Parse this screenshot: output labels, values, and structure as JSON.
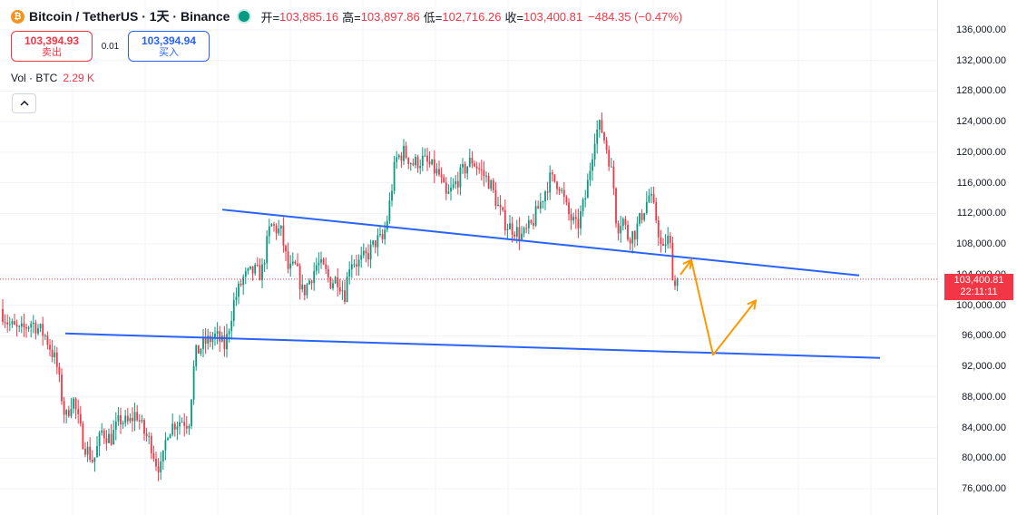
{
  "symbol": {
    "name": "Bitcoin / TetherUS · 1天 · Binance",
    "icon": "bitcoin-icon",
    "icon_glyph": "₿"
  },
  "ohlc": {
    "open_label": "开=",
    "open": "103,885.16",
    "high_label": "高=",
    "high": "103,897.86",
    "low_label": "低=",
    "low": "102,716.26",
    "close_label": "收=",
    "close": "103,400.81",
    "change": "−484.35 (−0.47%)"
  },
  "trade": {
    "sell_price": "103,394.93",
    "sell_label": "卖出",
    "spread": "0.01",
    "buy_price": "103,394.94",
    "buy_label": "买入"
  },
  "volume": {
    "label": "Vol · BTC",
    "value": "2.29 K"
  },
  "collapse_icon": "chevron-up-icon",
  "price_axis": {
    "ticks": [
      "136,000.00",
      "132,000.00",
      "128,000.00",
      "124,000.00",
      "120,000.00",
      "116,000.00",
      "112,000.00",
      "108,000.00",
      "104,000.00",
      "100,000.00",
      "96,000.00",
      "92,000.00",
      "88,000.00",
      "84,000.00",
      "80,000.00",
      "76,000.00"
    ],
    "last_price": "103,400.81",
    "countdown": "22:11:11"
  },
  "colors": {
    "up": "#089981",
    "down": "#f23645",
    "trendline": "#2962ff",
    "projection": "#ff9800",
    "last_price_line": "#f23645"
  },
  "chart_data": {
    "type": "candlestick",
    "title": "Bitcoin / TetherUS · 1天 · Binance",
    "ylim": [
      74000,
      138000
    ],
    "y_ticks": [
      136000,
      132000,
      128000,
      124000,
      120000,
      116000,
      112000,
      108000,
      104000,
      100000,
      96000,
      92000,
      88000,
      84000,
      80000,
      76000
    ],
    "price_path": [
      [
        0,
        99500
      ],
      [
        10,
        97500
      ],
      [
        22,
        96500
      ],
      [
        35,
        97800
      ],
      [
        50,
        96000
      ],
      [
        62,
        92500
      ],
      [
        72,
        85000
      ],
      [
        80,
        88000
      ],
      [
        92,
        82000
      ],
      [
        103,
        79500
      ],
      [
        112,
        83500
      ],
      [
        122,
        82500
      ],
      [
        132,
        85000
      ],
      [
        142,
        84500
      ],
      [
        150,
        86000
      ],
      [
        158,
        83500
      ],
      [
        166,
        82000
      ],
      [
        172,
        79500
      ],
      [
        178,
        78500
      ],
      [
        184,
        83500
      ],
      [
        192,
        84500
      ],
      [
        200,
        85000
      ],
      [
        208,
        84500
      ],
      [
        215,
        93500
      ],
      [
        225,
        95000
      ],
      [
        238,
        96000
      ],
      [
        248,
        94500
      ],
      [
        258,
        100500
      ],
      [
        268,
        103500
      ],
      [
        280,
        104500
      ],
      [
        288,
        104000
      ],
      [
        298,
        110500
      ],
      [
        310,
        109500
      ],
      [
        318,
        104500
      ],
      [
        326,
        105000
      ],
      [
        334,
        101500
      ],
      [
        342,
        103500
      ],
      [
        350,
        105500
      ],
      [
        358,
        104500
      ],
      [
        364,
        103000
      ],
      [
        372,
        103500
      ],
      [
        380,
        101500
      ],
      [
        386,
        106000
      ],
      [
        395,
        105500
      ],
      [
        405,
        106500
      ],
      [
        415,
        108500
      ],
      [
        422,
        108500
      ],
      [
        428,
        112000
      ],
      [
        436,
        119000
      ],
      [
        445,
        120000
      ],
      [
        455,
        118500
      ],
      [
        466,
        119000
      ],
      [
        476,
        118000
      ],
      [
        484,
        117000
      ],
      [
        492,
        114000
      ],
      [
        500,
        115500
      ],
      [
        510,
        117500
      ],
      [
        520,
        119000
      ],
      [
        530,
        117500
      ],
      [
        540,
        116000
      ],
      [
        550,
        112500
      ],
      [
        558,
        110500
      ],
      [
        566,
        110000
      ],
      [
        576,
        109000
      ],
      [
        586,
        110500
      ],
      [
        596,
        113500
      ],
      [
        606,
        116500
      ],
      [
        616,
        116000
      ],
      [
        626,
        112000
      ],
      [
        636,
        110000
      ],
      [
        646,
        114500
      ],
      [
        656,
        122500
      ],
      [
        662,
        123500
      ],
      [
        670,
        120000
      ],
      [
        676,
        116000
      ],
      [
        680,
        110000
      ],
      [
        686,
        111500
      ],
      [
        692,
        109000
      ],
      [
        700,
        109500
      ],
      [
        708,
        112000
      ],
      [
        716,
        114500
      ],
      [
        724,
        111000
      ],
      [
        730,
        106500
      ],
      [
        735,
        109000
      ],
      [
        739,
        107500
      ],
      [
        742,
        103500
      ],
      [
        745,
        102000
      ],
      [
        748,
        103400
      ]
    ],
    "last_price": 103400.81,
    "trendlines": [
      {
        "from": [
          245,
          112500
        ],
        "to": [
          947,
          103900
        ]
      },
      {
        "from": [
          72,
          96300
        ],
        "to": [
          970,
          93100
        ]
      }
    ],
    "projection": [
      [
        750,
        104000
      ],
      [
        762,
        105900
      ],
      [
        786,
        93500
      ],
      [
        833,
        100600
      ]
    ]
  }
}
